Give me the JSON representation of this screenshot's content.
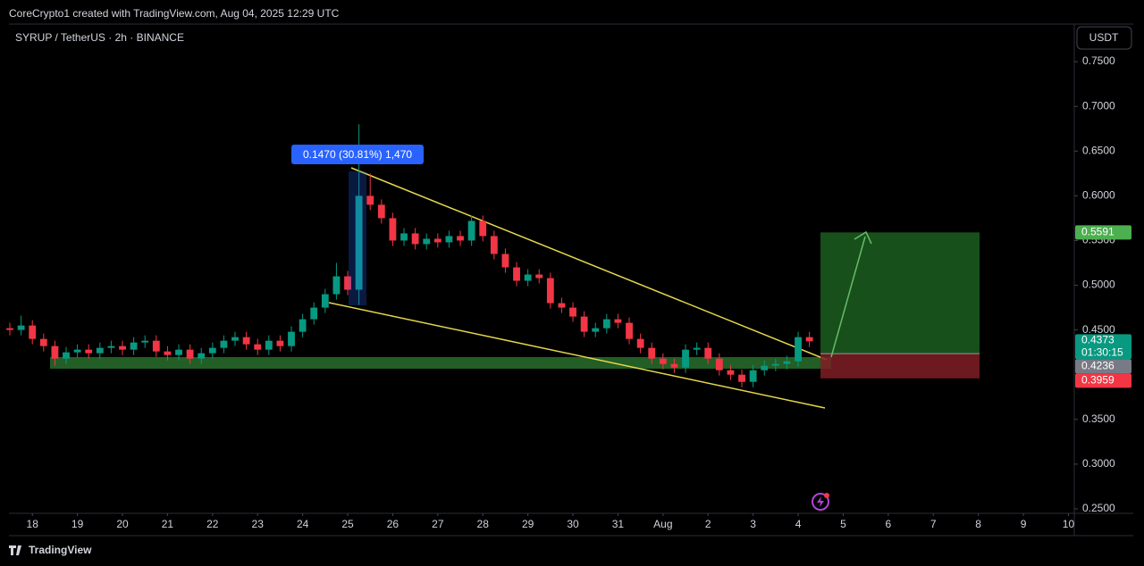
{
  "header": "CoreCrypto1 created with TradingView.com, Aug 04, 2025 12:29 UTC",
  "footer": "TradingView",
  "chart_data": {
    "type": "candlestick",
    "title": "SYRUP / TetherUS · 2h · BINANCE",
    "currency": "USDT",
    "up_color": "#089981",
    "down_color": "#f23645",
    "grid": false,
    "xlim": [
      -0.52,
      23.13
    ],
    "xticks": [
      {
        "value": 0,
        "label": "18"
      },
      {
        "value": 1,
        "label": "19"
      },
      {
        "value": 2,
        "label": "20"
      },
      {
        "value": 3,
        "label": "21"
      },
      {
        "value": 4,
        "label": "22"
      },
      {
        "value": 5,
        "label": "23"
      },
      {
        "value": 6,
        "label": "24"
      },
      {
        "value": 7,
        "label": "25"
      },
      {
        "value": 8,
        "label": "26"
      },
      {
        "value": 9,
        "label": "27"
      },
      {
        "value": 10,
        "label": "28"
      },
      {
        "value": 11,
        "label": "29"
      },
      {
        "value": 12,
        "label": "30"
      },
      {
        "value": 13,
        "label": "31"
      },
      {
        "value": 14,
        "label": "Aug"
      },
      {
        "value": 15,
        "label": "2"
      },
      {
        "value": 16,
        "label": "3"
      },
      {
        "value": 17,
        "label": "4"
      },
      {
        "value": 18,
        "label": "5"
      },
      {
        "value": 19,
        "label": "6"
      },
      {
        "value": 20,
        "label": "7"
      },
      {
        "value": 21,
        "label": "8"
      },
      {
        "value": 22,
        "label": "9"
      },
      {
        "value": 23,
        "label": "10"
      }
    ],
    "ylim": [
      0.245,
      0.791
    ],
    "yticks": [
      {
        "value": 0.25,
        "label": "0.2500"
      },
      {
        "value": 0.3,
        "label": "0.3000"
      },
      {
        "value": 0.35,
        "label": "0.3500"
      },
      {
        "value": 0.45,
        "label": "0.4500"
      },
      {
        "value": 0.5,
        "label": "0.5000"
      },
      {
        "value": 0.55,
        "label": "0.5500"
      },
      {
        "value": 0.6,
        "label": "0.6000"
      },
      {
        "value": 0.65,
        "label": "0.6500"
      },
      {
        "value": 0.7,
        "label": "0.7000"
      },
      {
        "value": 0.75,
        "label": "0.7500"
      }
    ],
    "x": [
      -0.5,
      -0.25,
      0,
      0.25,
      0.5,
      0.75,
      1,
      1.25,
      1.5,
      1.75,
      2,
      2.25,
      2.5,
      2.75,
      3,
      3.25,
      3.5,
      3.75,
      4,
      4.25,
      4.5,
      4.75,
      5,
      5.25,
      5.5,
      5.75,
      6,
      6.25,
      6.5,
      6.75,
      7,
      7.25,
      7.5,
      7.75,
      8,
      8.25,
      8.5,
      8.75,
      9,
      9.25,
      9.5,
      9.75,
      10,
      10.25,
      10.5,
      10.75,
      11,
      11.25,
      11.5,
      11.75,
      12,
      12.25,
      12.5,
      12.75,
      13,
      13.25,
      13.5,
      13.75,
      14,
      14.25,
      14.5,
      14.75,
      15,
      15.25,
      15.5,
      15.75,
      16,
      16.25,
      16.5,
      16.75,
      17,
      17.25
    ],
    "open": [
      0.452,
      0.45,
      0.455,
      0.44,
      0.432,
      0.418,
      0.425,
      0.428,
      0.424,
      0.43,
      0.432,
      0.428,
      0.436,
      0.438,
      0.426,
      0.422,
      0.428,
      0.418,
      0.424,
      0.43,
      0.438,
      0.442,
      0.434,
      0.428,
      0.438,
      0.432,
      0.448,
      0.462,
      0.475,
      0.49,
      0.51,
      0.495,
      0.6,
      0.59,
      0.575,
      0.55,
      0.558,
      0.546,
      0.552,
      0.548,
      0.555,
      0.55,
      0.572,
      0.555,
      0.535,
      0.52,
      0.505,
      0.512,
      0.508,
      0.48,
      0.475,
      0.465,
      0.448,
      0.452,
      0.462,
      0.458,
      0.44,
      0.43,
      0.418,
      0.412,
      0.408,
      0.428,
      0.43,
      0.418,
      0.405,
      0.4,
      0.392,
      0.405,
      0.41,
      0.412,
      0.415,
      0.442
    ],
    "high": [
      0.458,
      0.466,
      0.461,
      0.446,
      0.438,
      0.431,
      0.434,
      0.434,
      0.436,
      0.438,
      0.438,
      0.442,
      0.444,
      0.444,
      0.432,
      0.434,
      0.434,
      0.43,
      0.436,
      0.444,
      0.448,
      0.448,
      0.44,
      0.444,
      0.444,
      0.454,
      0.468,
      0.481,
      0.496,
      0.525,
      0.516,
      0.68,
      0.625,
      0.596,
      0.581,
      0.564,
      0.564,
      0.558,
      0.558,
      0.561,
      0.561,
      0.578,
      0.578,
      0.561,
      0.541,
      0.526,
      0.518,
      0.518,
      0.514,
      0.486,
      0.481,
      0.471,
      0.458,
      0.468,
      0.468,
      0.464,
      0.446,
      0.436,
      0.424,
      0.418,
      0.434,
      0.436,
      0.436,
      0.424,
      0.411,
      0.406,
      0.411,
      0.416,
      0.418,
      0.421,
      0.448,
      0.448
    ],
    "low": [
      0.444,
      0.444,
      0.434,
      0.426,
      0.41,
      0.412,
      0.419,
      0.418,
      0.418,
      0.424,
      0.422,
      0.422,
      0.43,
      0.42,
      0.416,
      0.416,
      0.412,
      0.412,
      0.418,
      0.424,
      0.432,
      0.428,
      0.422,
      0.422,
      0.426,
      0.426,
      0.442,
      0.456,
      0.469,
      0.484,
      0.489,
      0.478,
      0.584,
      0.569,
      0.544,
      0.544,
      0.54,
      0.54,
      0.542,
      0.542,
      0.544,
      0.544,
      0.549,
      0.529,
      0.514,
      0.499,
      0.499,
      0.502,
      0.474,
      0.469,
      0.459,
      0.442,
      0.442,
      0.446,
      0.452,
      0.434,
      0.424,
      0.412,
      0.406,
      0.402,
      0.402,
      0.422,
      0.412,
      0.399,
      0.394,
      0.386,
      0.386,
      0.399,
      0.404,
      0.406,
      0.409,
      0.431
    ],
    "close": [
      0.45,
      0.455,
      0.44,
      0.432,
      0.418,
      0.425,
      0.428,
      0.424,
      0.43,
      0.432,
      0.428,
      0.436,
      0.438,
      0.426,
      0.422,
      0.428,
      0.418,
      0.424,
      0.43,
      0.438,
      0.442,
      0.434,
      0.428,
      0.438,
      0.432,
      0.448,
      0.462,
      0.475,
      0.49,
      0.51,
      0.495,
      0.6,
      0.59,
      0.575,
      0.55,
      0.558,
      0.546,
      0.552,
      0.548,
      0.555,
      0.55,
      0.572,
      0.555,
      0.535,
      0.52,
      0.505,
      0.512,
      0.508,
      0.48,
      0.475,
      0.465,
      0.448,
      0.452,
      0.462,
      0.458,
      0.44,
      0.43,
      0.418,
      0.412,
      0.408,
      0.428,
      0.43,
      0.418,
      0.405,
      0.4,
      0.392,
      0.405,
      0.41,
      0.412,
      0.415,
      0.442,
      0.4373
    ],
    "countdown": "01:30:15",
    "measure_label": "0.1470 (30.81%) 1,470",
    "position": {
      "target": 0.5591,
      "entry": 0.4236,
      "stop": 0.3959
    }
  }
}
